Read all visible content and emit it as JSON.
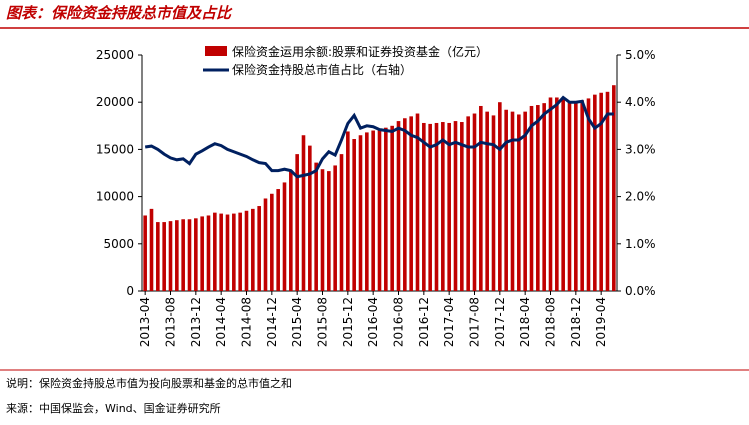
{
  "chart_data": {
    "type": "bar_line",
    "title": "图表：保险资金持股总市值及占比",
    "notes": [
      "说明：保险资金持股总市值为投向股票和基金的总市值之和",
      "来源：中国保监会，Wind、国金证券研究所"
    ],
    "categories": [
      "2013-04",
      null,
      null,
      null,
      "2013-08",
      null,
      null,
      null,
      "2013-12",
      null,
      null,
      null,
      "2014-04",
      null,
      null,
      null,
      "2014-08",
      null,
      null,
      null,
      "2014-12",
      null,
      null,
      null,
      "2015-04",
      null,
      null,
      null,
      "2015-08",
      null,
      null,
      null,
      "2015-12",
      null,
      null,
      null,
      "2016-04",
      null,
      null,
      null,
      "2016-08",
      null,
      null,
      null,
      "2016-12",
      null,
      null,
      null,
      "2017-04",
      null,
      null,
      null,
      "2017-08",
      null,
      null,
      null,
      "2017-12",
      null,
      null,
      null,
      "2018-04",
      null,
      null,
      null,
      "2018-08",
      null,
      null,
      null,
      "2018-12",
      null,
      null,
      null,
      "2019-04",
      null,
      null
    ],
    "series": [
      {
        "name": "保险资金运用余额:股票和证券投资基金（亿元）",
        "color": "#c00000",
        "values": [
          8000,
          8700,
          7300,
          7300,
          7400,
          7500,
          7600,
          7600,
          7700,
          7900,
          8000,
          8300,
          8200,
          8100,
          8200,
          8300,
          8500,
          8700,
          9000,
          9800,
          10300,
          10800,
          11500,
          12800,
          14500,
          16500,
          15400,
          13600,
          12900,
          12700,
          13300,
          14500,
          16900,
          16100,
          16500,
          16800,
          17000,
          17200,
          17300,
          17500,
          18000,
          18300,
          18500,
          18800,
          17800,
          17700,
          17800,
          17900,
          17800,
          18000,
          17900,
          18500,
          18800,
          19600,
          19000,
          18600,
          20000,
          19200,
          19000,
          18700,
          19000,
          19600,
          19700,
          19900,
          20500,
          20500,
          20300,
          20000,
          20000,
          20200,
          20400,
          20800,
          21000,
          21100,
          21800
        ]
      },
      {
        "name": "保险资金持股总市值占比（右轴）",
        "color": "#002060",
        "axis": "y2",
        "values": [
          3.05,
          3.07,
          3.0,
          2.9,
          2.82,
          2.78,
          2.8,
          2.7,
          2.9,
          2.97,
          3.05,
          3.12,
          3.08,
          3.0,
          2.95,
          2.9,
          2.85,
          2.78,
          2.72,
          2.7,
          2.55,
          2.55,
          2.58,
          2.55,
          2.42,
          2.45,
          2.48,
          2.55,
          2.8,
          2.95,
          2.88,
          3.2,
          3.55,
          3.72,
          3.45,
          3.5,
          3.48,
          3.42,
          3.4,
          3.38,
          3.45,
          3.4,
          3.3,
          3.25,
          3.15,
          3.05,
          3.1,
          3.2,
          3.1,
          3.15,
          3.1,
          3.05,
          3.05,
          3.15,
          3.12,
          3.1,
          3.0,
          3.15,
          3.2,
          3.2,
          3.3,
          3.5,
          3.6,
          3.75,
          3.85,
          3.95,
          4.1,
          4.0,
          4.0,
          4.02,
          3.65,
          3.45,
          3.55,
          3.75,
          3.75
        ]
      }
    ],
    "ylim": [
      0,
      25000
    ],
    "yticks": [
      0,
      5000,
      10000,
      15000,
      20000,
      25000
    ],
    "y2lim": [
      0,
      5
    ],
    "y2ticks": [
      {
        "value": 0,
        "label": "0.0%"
      },
      {
        "value": 1,
        "label": "1.0%"
      },
      {
        "value": 2,
        "label": "2.0%"
      },
      {
        "value": 3,
        "label": "3.0%"
      },
      {
        "value": 4,
        "label": "4.0%"
      },
      {
        "value": 5,
        "label": "5.0%"
      }
    ]
  }
}
